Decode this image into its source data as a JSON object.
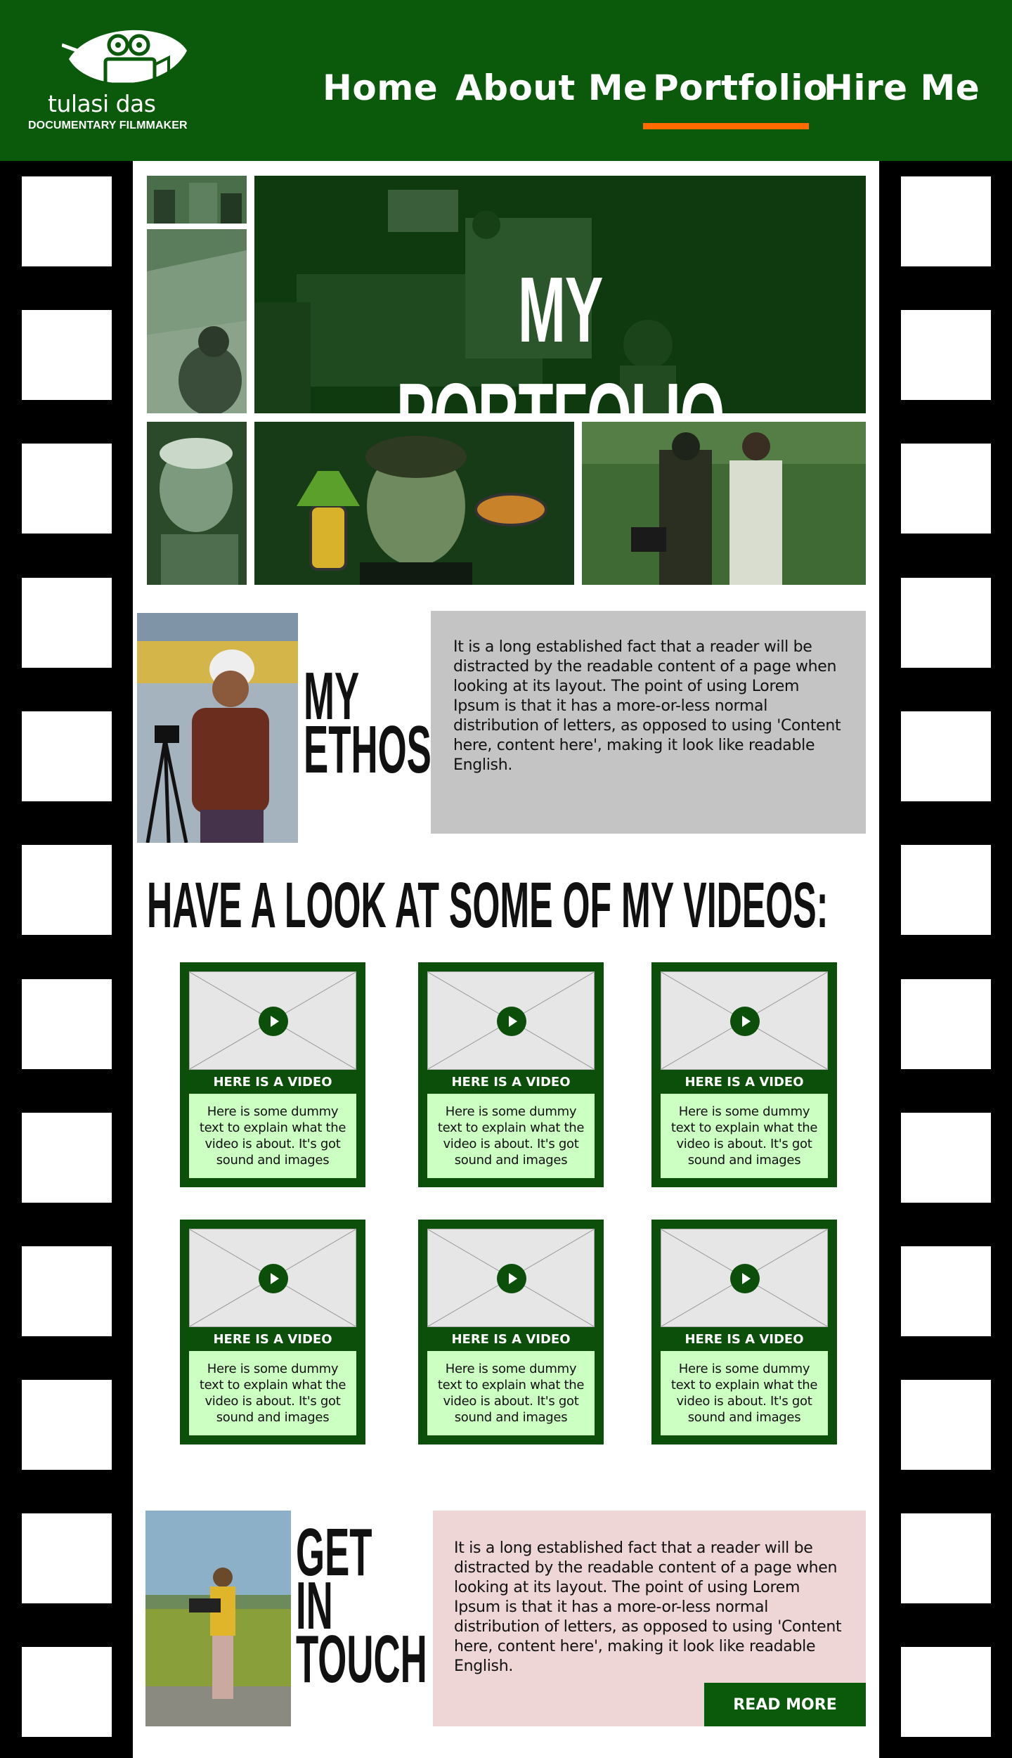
{
  "brand": {
    "name": "tulasi das",
    "tagline": "DOCUMENTARY FILMMAKER"
  },
  "nav": {
    "items": [
      "Home",
      "About Me",
      "Portfolio",
      "Hire Me"
    ],
    "active": "Portfolio"
  },
  "hero": {
    "title": "MY PORTFOLIO"
  },
  "ethos": {
    "heading_line1": "MY",
    "heading_line2": "ETHOS",
    "text": "It is a long established fact that a reader will be distracted by the readable content of a page when looking at its layout. The point of using Lorem Ipsum is that it has a more-or-less normal distribution of letters, as opposed to using 'Content here, content here', making it look like readable English."
  },
  "videos": {
    "heading": "HAVE A LOOK AT SOME OF MY VIDEOS:",
    "items": [
      {
        "title": "HERE IS A VIDEO",
        "desc": "Here is some dummy text to explain what the video is about. It's got sound and images"
      },
      {
        "title": "HERE IS A VIDEO",
        "desc": "Here is some dummy text to explain what the video is about. It's got sound and images"
      },
      {
        "title": "HERE IS A VIDEO",
        "desc": "Here is some dummy text to explain what the video is about. It's got sound and images"
      },
      {
        "title": "HERE IS A VIDEO",
        "desc": "Here is some dummy text to explain what the video is about. It's got sound and images"
      },
      {
        "title": "HERE IS A VIDEO",
        "desc": "Here is some dummy text to explain what the video is about. It's got sound and images"
      },
      {
        "title": "HERE IS A VIDEO",
        "desc": "Here is some dummy text to explain what the video is about. It's got sound and images"
      }
    ]
  },
  "contact": {
    "heading_line1": "GET",
    "heading_line2": "IN",
    "heading_line3": "TOUCH",
    "text": "It is a long established fact that a reader will be distracted by the readable content of a page when looking at its layout. The point of using Lorem Ipsum is that it has a more-or-less normal distribution of letters, as opposed to using 'Content here, content here', making it look like readable English.",
    "button": "READ MORE"
  },
  "colors": {
    "header_green": "#0b5a0b",
    "accent_orange": "#ff6a00",
    "card_green": "#0b4f0b",
    "card_text_bg": "#ccffc2",
    "ethos_box": "#c4c4c4",
    "contact_box": "#eed6d6"
  },
  "icons": [
    "film-camera-leaf-logo",
    "play-icon"
  ]
}
